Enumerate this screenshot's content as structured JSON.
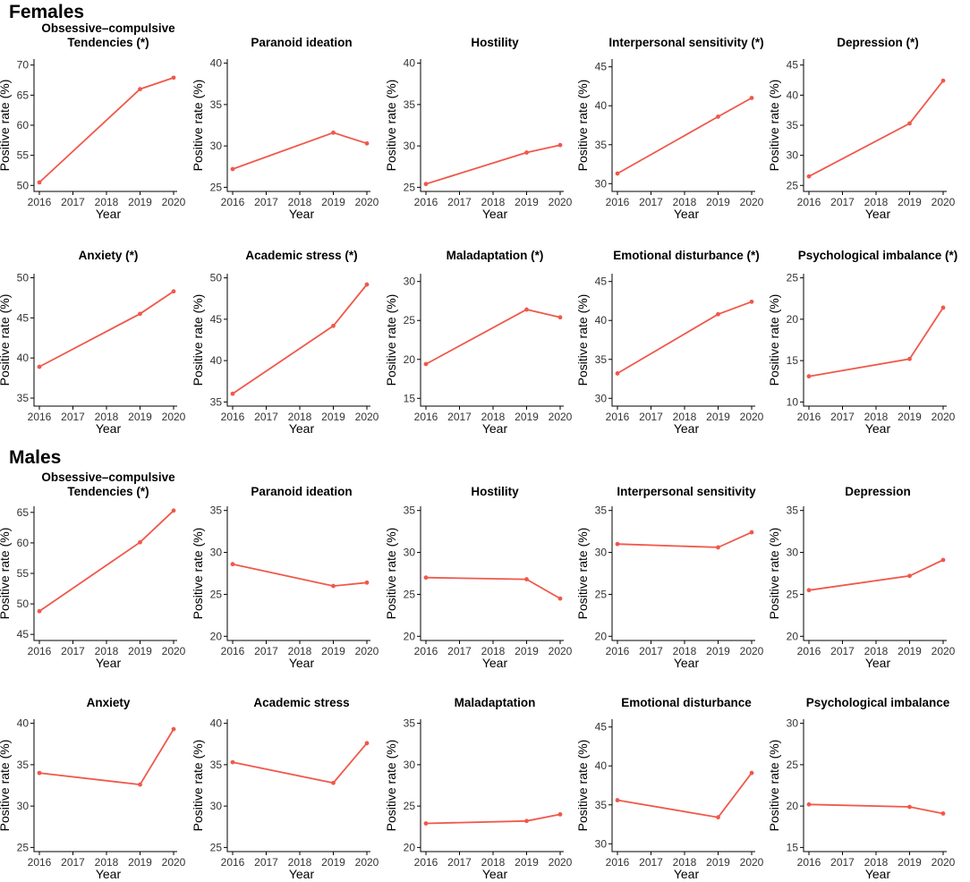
{
  "figure": {
    "sections": [
      "Females",
      "Males"
    ],
    "xlabel": "Year",
    "ylabel": "Positive rate (%)",
    "x_ticks": [
      2016,
      2017,
      2018,
      2019,
      2020
    ],
    "line_color": "#F0584B"
  },
  "chart_data": [
    {
      "type": "line",
      "group": "Females",
      "title": "Obsessive–compulsive\nTendencies (*)",
      "x": [
        2016,
        2019,
        2020
      ],
      "values": [
        50.5,
        66.0,
        67.9
      ],
      "ylim": [
        49,
        71
      ],
      "yticks": [
        50,
        55,
        60,
        65,
        70
      ],
      "xlabel": "Year",
      "ylabel": "Positive rate (%)"
    },
    {
      "type": "line",
      "group": "Females",
      "title": "Paranoid ideation",
      "x": [
        2016,
        2019,
        2020
      ],
      "values": [
        27.2,
        31.6,
        30.3
      ],
      "ylim": [
        24.5,
        40.5
      ],
      "yticks": [
        25,
        30,
        35,
        40
      ],
      "xlabel": "Year",
      "ylabel": "Positive rate (%)"
    },
    {
      "type": "line",
      "group": "Females",
      "title": "Hostility",
      "x": [
        2016,
        2019,
        2020
      ],
      "values": [
        25.4,
        29.2,
        30.1
      ],
      "ylim": [
        24.5,
        40.5
      ],
      "yticks": [
        25,
        30,
        35,
        40
      ],
      "xlabel": "Year",
      "ylabel": "Positive rate (%)"
    },
    {
      "type": "line",
      "group": "Females",
      "title": "Interpersonal sensitivity (*)",
      "x": [
        2016,
        2019,
        2020
      ],
      "values": [
        31.3,
        38.6,
        41.0
      ],
      "ylim": [
        29,
        46
      ],
      "yticks": [
        30,
        35,
        40,
        45
      ],
      "xlabel": "Year",
      "ylabel": "Positive rate (%)"
    },
    {
      "type": "line",
      "group": "Females",
      "title": "Depression (*)",
      "x": [
        2016,
        2019,
        2020
      ],
      "values": [
        26.5,
        35.3,
        42.4
      ],
      "ylim": [
        24,
        46
      ],
      "yticks": [
        25,
        30,
        35,
        40,
        45
      ],
      "xlabel": "Year",
      "ylabel": "Positive rate (%)"
    },
    {
      "type": "line",
      "group": "Females",
      "title": "Anxiety (*)",
      "x": [
        2016,
        2019,
        2020
      ],
      "values": [
        38.9,
        45.5,
        48.3
      ],
      "ylim": [
        34,
        50.5
      ],
      "yticks": [
        35,
        40,
        45,
        50
      ],
      "xlabel": "Year",
      "ylabel": "Positive rate (%)"
    },
    {
      "type": "line",
      "group": "Females",
      "title": "Academic stress (*)",
      "x": [
        2016,
        2019,
        2020
      ],
      "values": [
        36.0,
        44.2,
        49.2
      ],
      "ylim": [
        34.5,
        50.5
      ],
      "yticks": [
        35,
        40,
        45,
        50
      ],
      "xlabel": "Year",
      "ylabel": "Positive rate (%)"
    },
    {
      "type": "line",
      "group": "Females",
      "title": "Maladaptation (*)",
      "x": [
        2016,
        2019,
        2020
      ],
      "values": [
        19.4,
        26.4,
        25.4
      ],
      "ylim": [
        14,
        31
      ],
      "yticks": [
        15,
        20,
        25,
        30
      ],
      "xlabel": "Year",
      "ylabel": "Positive rate (%)"
    },
    {
      "type": "line",
      "group": "Females",
      "title": "Emotional disturbance (*)",
      "x": [
        2016,
        2019,
        2020
      ],
      "values": [
        33.2,
        40.8,
        42.4
      ],
      "ylim": [
        29,
        46
      ],
      "yticks": [
        30,
        35,
        40,
        45
      ],
      "xlabel": "Year",
      "ylabel": "Positive rate (%)"
    },
    {
      "type": "line",
      "group": "Females",
      "title": "Psychological imbalance (*)",
      "x": [
        2016,
        2019,
        2020
      ],
      "values": [
        13.1,
        15.2,
        21.4
      ],
      "ylim": [
        9.5,
        25.5
      ],
      "yticks": [
        10,
        15,
        20,
        25
      ],
      "xlabel": "Year",
      "ylabel": "Positive rate (%)"
    },
    {
      "type": "line",
      "group": "Males",
      "title": "Obsessive–compulsive\nTendencies (*)",
      "x": [
        2016,
        2019,
        2020
      ],
      "values": [
        48.8,
        60.1,
        65.3
      ],
      "ylim": [
        44,
        66
      ],
      "yticks": [
        45,
        50,
        55,
        60,
        65
      ],
      "xlabel": "Year",
      "ylabel": "Positive rate (%)"
    },
    {
      "type": "line",
      "group": "Males",
      "title": "Paranoid ideation",
      "x": [
        2016,
        2019,
        2020
      ],
      "values": [
        28.6,
        26.0,
        26.4
      ],
      "ylim": [
        19.5,
        35.5
      ],
      "yticks": [
        20,
        25,
        30,
        35
      ],
      "xlabel": "Year",
      "ylabel": "Positive rate (%)"
    },
    {
      "type": "line",
      "group": "Males",
      "title": "Hostility",
      "x": [
        2016,
        2019,
        2020
      ],
      "values": [
        27.0,
        26.8,
        24.5
      ],
      "ylim": [
        19.5,
        35.5
      ],
      "yticks": [
        20,
        25,
        30,
        35
      ],
      "xlabel": "Year",
      "ylabel": "Positive rate (%)"
    },
    {
      "type": "line",
      "group": "Males",
      "title": "Interpersonal sensitivity",
      "x": [
        2016,
        2019,
        2020
      ],
      "values": [
        31.0,
        30.6,
        32.4
      ],
      "ylim": [
        19.5,
        35.5
      ],
      "yticks": [
        20,
        25,
        30,
        35
      ],
      "xlabel": "Year",
      "ylabel": "Positive rate (%)"
    },
    {
      "type": "line",
      "group": "Males",
      "title": "Depression",
      "x": [
        2016,
        2019,
        2020
      ],
      "values": [
        25.5,
        27.2,
        29.1
      ],
      "ylim": [
        19.5,
        35.5
      ],
      "yticks": [
        20,
        25,
        30,
        35
      ],
      "xlabel": "Year",
      "ylabel": "Positive rate (%)"
    },
    {
      "type": "line",
      "group": "Males",
      "title": "Anxiety",
      "x": [
        2016,
        2019,
        2020
      ],
      "values": [
        34.0,
        32.6,
        39.3
      ],
      "ylim": [
        24.5,
        40.5
      ],
      "yticks": [
        25,
        30,
        35,
        40
      ],
      "xlabel": "Year",
      "ylabel": "Positive rate (%)"
    },
    {
      "type": "line",
      "group": "Males",
      "title": "Academic stress",
      "x": [
        2016,
        2019,
        2020
      ],
      "values": [
        35.3,
        32.8,
        37.6
      ],
      "ylim": [
        24.5,
        40.5
      ],
      "yticks": [
        25,
        30,
        35,
        40
      ],
      "xlabel": "Year",
      "ylabel": "Positive rate (%)"
    },
    {
      "type": "line",
      "group": "Males",
      "title": "Maladaptation",
      "x": [
        2016,
        2019,
        2020
      ],
      "values": [
        22.9,
        23.2,
        24.0
      ],
      "ylim": [
        19.5,
        35.5
      ],
      "yticks": [
        20,
        25,
        30,
        35
      ],
      "xlabel": "Year",
      "ylabel": "Positive rate (%)"
    },
    {
      "type": "line",
      "group": "Males",
      "title": "Emotional disturbance",
      "x": [
        2016,
        2019,
        2020
      ],
      "values": [
        35.6,
        33.4,
        39.1
      ],
      "ylim": [
        29,
        46
      ],
      "yticks": [
        30,
        35,
        40,
        45
      ],
      "xlabel": "Year",
      "ylabel": "Positive rate (%)"
    },
    {
      "type": "line",
      "group": "Males",
      "title": "Psychological imbalance",
      "x": [
        2016,
        2019,
        2020
      ],
      "values": [
        20.2,
        19.9,
        19.1
      ],
      "ylim": [
        14.5,
        30.5
      ],
      "yticks": [
        15,
        20,
        25,
        30
      ],
      "xlabel": "Year",
      "ylabel": "Positive rate (%)"
    }
  ]
}
